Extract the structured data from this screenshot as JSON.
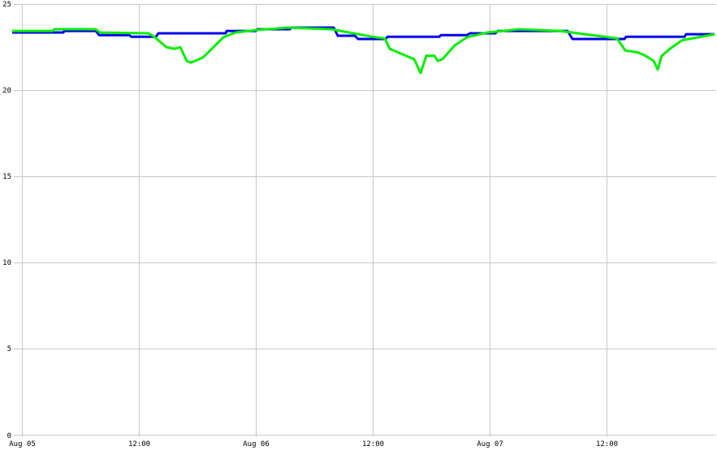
{
  "chart_data": {
    "type": "line",
    "title": "",
    "xlabel": "",
    "ylabel": "",
    "ylim": [
      0,
      25
    ],
    "xlim": [
      "Aug 04 23:00",
      "Aug 07 23:15"
    ],
    "grid": true,
    "legend": "none",
    "y_ticks": [
      "0",
      "5",
      "10",
      "15",
      "20",
      "25"
    ],
    "y_tick_values": [
      0,
      5,
      10,
      15,
      20,
      25
    ],
    "x_ticks": [
      {
        "label": "Aug 05",
        "time": "Aug 05 00:00"
      },
      {
        "label": "12:00",
        "time": "Aug 05 12:00"
      },
      {
        "label": "Aug 06",
        "time": "Aug 06 00:00"
      },
      {
        "label": "12:00",
        "time": "Aug 06 12:00"
      },
      {
        "label": "Aug 07",
        "time": "Aug 07 00:00"
      },
      {
        "label": "12:00",
        "time": "Aug 07 12:00"
      }
    ],
    "series": [
      {
        "color": "#0000ee",
        "points": [
          [
            "Aug 04 23:00",
            23.35
          ],
          [
            "Aug 05 04:15",
            23.35
          ],
          [
            "Aug 05 04:20",
            23.44
          ],
          [
            "Aug 05 07:35",
            23.44
          ],
          [
            "Aug 05 07:55",
            23.2
          ],
          [
            "Aug 05 11:00",
            23.2
          ],
          [
            "Aug 05 11:15",
            23.1
          ],
          [
            "Aug 05 13:45",
            23.1
          ],
          [
            "Aug 05 14:00",
            23.3
          ],
          [
            "Aug 05 20:55",
            23.3
          ],
          [
            "Aug 05 21:00",
            23.44
          ],
          [
            "Aug 06 00:00",
            23.44
          ],
          [
            "Aug 06 00:10",
            23.54
          ],
          [
            "Aug 06 03:30",
            23.54
          ],
          [
            "Aug 06 03:40",
            23.63
          ],
          [
            "Aug 06 08:00",
            23.63
          ],
          [
            "Aug 06 08:25",
            23.16
          ],
          [
            "Aug 06 10:10",
            23.16
          ],
          [
            "Aug 06 10:30",
            22.97
          ],
          [
            "Aug 06 13:20",
            22.97
          ],
          [
            "Aug 06 13:30",
            23.1
          ],
          [
            "Aug 06 18:50",
            23.1
          ],
          [
            "Aug 06 19:00",
            23.2
          ],
          [
            "Aug 06 21:40",
            23.2
          ],
          [
            "Aug 06 22:00",
            23.3
          ],
          [
            "Aug 07 00:35",
            23.3
          ],
          [
            "Aug 07 00:50",
            23.44
          ],
          [
            "Aug 07 08:00",
            23.44
          ],
          [
            "Aug 07 08:30",
            22.97
          ],
          [
            "Aug 07 13:50",
            22.97
          ],
          [
            "Aug 07 14:00",
            23.1
          ],
          [
            "Aug 07 20:00",
            23.1
          ],
          [
            "Aug 07 20:10",
            23.25
          ],
          [
            "Aug 07 23:05",
            23.25
          ]
        ]
      },
      {
        "color": "#00ee00",
        "points": [
          [
            "Aug 04 23:00",
            23.44
          ],
          [
            "Aug 05 03:10",
            23.44
          ],
          [
            "Aug 05 03:20",
            23.54
          ],
          [
            "Aug 05 07:35",
            23.54
          ],
          [
            "Aug 05 08:00",
            23.35
          ],
          [
            "Aug 05 13:00",
            23.3
          ],
          [
            "Aug 05 13:35",
            23.1
          ],
          [
            "Aug 05 14:50",
            22.5
          ],
          [
            "Aug 05 15:40",
            22.4
          ],
          [
            "Aug 05 16:15",
            22.5
          ],
          [
            "Aug 05 16:55",
            21.7
          ],
          [
            "Aug 05 17:20",
            21.6
          ],
          [
            "Aug 05 18:35",
            21.9
          ],
          [
            "Aug 05 19:50",
            22.6
          ],
          [
            "Aug 05 20:40",
            23.07
          ],
          [
            "Aug 05 21:55",
            23.35
          ],
          [
            "Aug 06 00:00",
            23.49
          ],
          [
            "Aug 06 03:20",
            23.63
          ],
          [
            "Aug 06 07:45",
            23.54
          ],
          [
            "Aug 06 09:35",
            23.35
          ],
          [
            "Aug 06 12:00",
            23.1
          ],
          [
            "Aug 06 13:15",
            23.0
          ],
          [
            "Aug 06 13:45",
            22.4
          ],
          [
            "Aug 06 14:35",
            22.2
          ],
          [
            "Aug 06 15:25",
            22.0
          ],
          [
            "Aug 06 16:15",
            21.8
          ],
          [
            "Aug 06 16:55",
            21.0
          ],
          [
            "Aug 06 17:30",
            22.0
          ],
          [
            "Aug 06 18:20",
            22.0
          ],
          [
            "Aug 06 18:40",
            21.7
          ],
          [
            "Aug 06 19:10",
            21.8
          ],
          [
            "Aug 06 20:25",
            22.6
          ],
          [
            "Aug 06 21:40",
            23.07
          ],
          [
            "Aug 06 23:45",
            23.35
          ],
          [
            "Aug 07 01:25",
            23.44
          ],
          [
            "Aug 07 03:00",
            23.54
          ],
          [
            "Aug 07 07:15",
            23.44
          ],
          [
            "Aug 07 09:45",
            23.25
          ],
          [
            "Aug 07 11:50",
            23.1
          ],
          [
            "Aug 07 13:05",
            23.0
          ],
          [
            "Aug 07 13:55",
            22.3
          ],
          [
            "Aug 07 15:10",
            22.2
          ],
          [
            "Aug 07 16:00",
            22.0
          ],
          [
            "Aug 07 16:50",
            21.7
          ],
          [
            "Aug 07 17:15",
            21.2
          ],
          [
            "Aug 07 17:40",
            22.0
          ],
          [
            "Aug 07 18:30",
            22.4
          ],
          [
            "Aug 07 19:45",
            22.9
          ],
          [
            "Aug 07 21:25",
            23.07
          ],
          [
            "Aug 07 23:05",
            23.25
          ]
        ]
      }
    ]
  }
}
